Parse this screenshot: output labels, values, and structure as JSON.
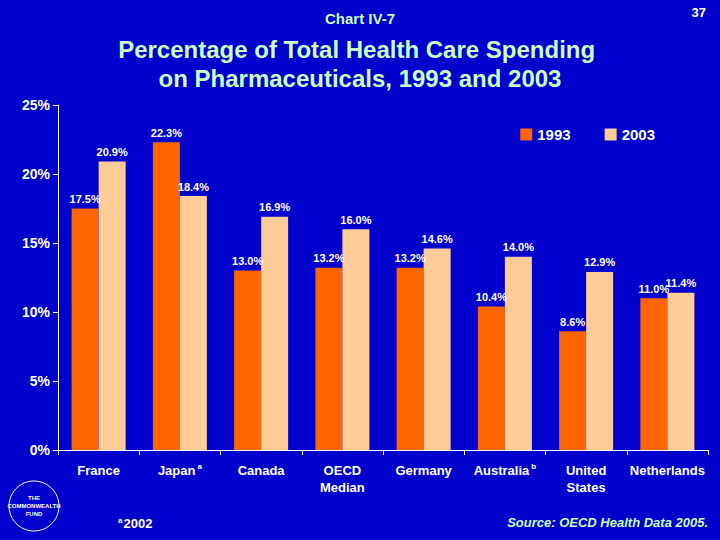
{
  "chart_data": {
    "type": "bar",
    "header": "Chart IV-7",
    "page": 37,
    "title": "Percentage of Total Health Care Spending on Pharmaceuticals, 1993 and 2003",
    "categories": [
      "France",
      "Japan",
      "Canada",
      "OECD Median",
      "Germany",
      "Australia",
      "United States",
      "Netherlands"
    ],
    "category_marks": [
      null,
      "a",
      null,
      null,
      null,
      "b",
      null,
      null
    ],
    "series": [
      {
        "name": "1993",
        "color": "#ff6600",
        "values": [
          17.5,
          22.3,
          13.0,
          13.2,
          13.2,
          10.4,
          8.6,
          11.0
        ],
        "value_labels": [
          "17.5%",
          "22.3%",
          "13.0%",
          "13.2%",
          "13.2%",
          "10.4%",
          "8.6%",
          "11.0%"
        ]
      },
      {
        "name": "2003",
        "color": "#ffcc99",
        "values": [
          20.9,
          18.4,
          16.9,
          16.0,
          14.6,
          14.0,
          12.9,
          11.4
        ],
        "value_labels": [
          "20.9%",
          "18.4%",
          "16.9%",
          "16.0%",
          "14.6%",
          "14.0%",
          "12.9%",
          "11.4%"
        ]
      }
    ],
    "ylim": [
      0,
      25
    ],
    "yticks": [
      {
        "value": 0,
        "label": "0%"
      },
      {
        "value": 5,
        "label": "5%"
      },
      {
        "value": 10,
        "label": "10%"
      },
      {
        "value": 15,
        "label": "15%"
      },
      {
        "value": 20,
        "label": "20%"
      },
      {
        "value": 25,
        "label": "25%"
      }
    ],
    "grid": false,
    "legend": "upper right",
    "data_labels": true,
    "footnote": {
      "mark": "a",
      "text": "2002"
    },
    "source": "Source: OECD Health Data 2005.",
    "logo": "THE COMMONWEALTH FUND"
  }
}
